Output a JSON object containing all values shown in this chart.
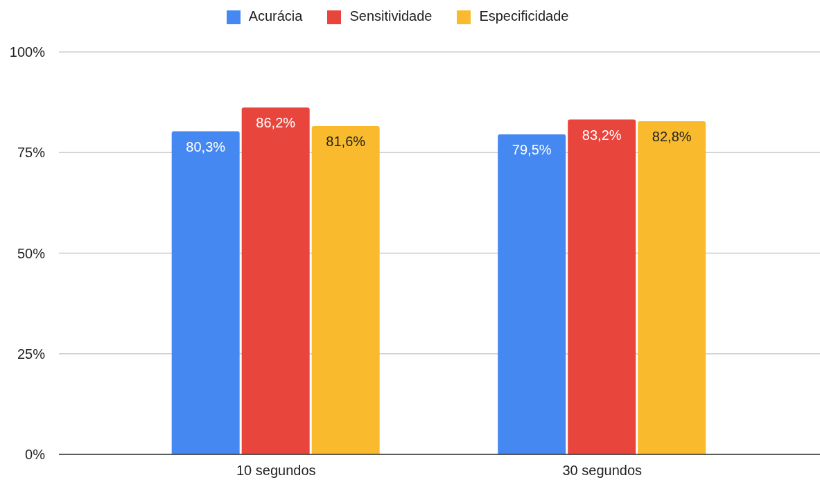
{
  "chart_data": {
    "type": "bar",
    "categories": [
      "10 segundos",
      "30 segundos"
    ],
    "series": [
      {
        "name": "Acurácia",
        "color": "#4688f1",
        "values": [
          80.3,
          79.5
        ],
        "value_labels": [
          "80,3%",
          "79,5%"
        ]
      },
      {
        "name": "Sensitividade",
        "color": "#e8453c",
        "values": [
          86.2,
          83.2
        ],
        "value_labels": [
          "86,2%",
          "83,2%"
        ]
      },
      {
        "name": "Especificidade",
        "color": "#f9bb2d",
        "values": [
          81.6,
          82.8
        ],
        "value_labels": [
          "81,6%",
          "82,8%"
        ]
      }
    ],
    "ylim": [
      0,
      100
    ],
    "yticks": [
      {
        "value": 0,
        "label": "0%"
      },
      {
        "value": 25,
        "label": "25%"
      },
      {
        "value": 50,
        "label": "50%"
      },
      {
        "value": 75,
        "label": "75%"
      },
      {
        "value": 100,
        "label": "100%"
      }
    ],
    "grid": "y",
    "legend": "top"
  }
}
